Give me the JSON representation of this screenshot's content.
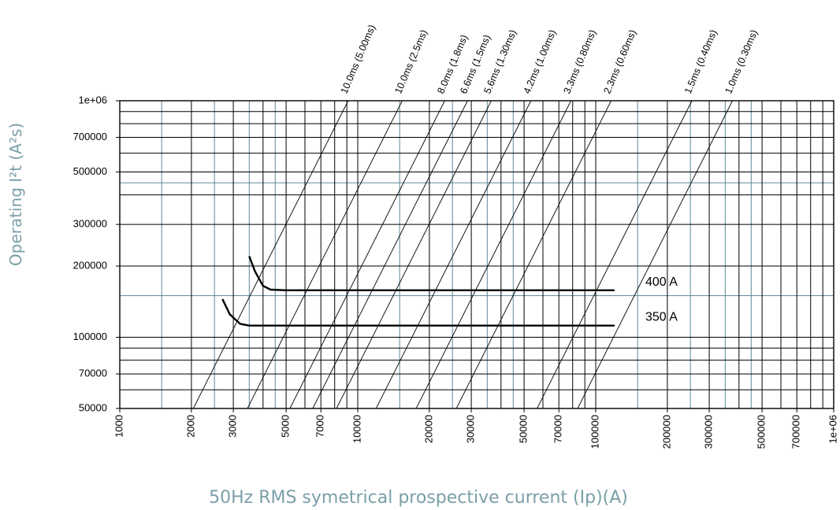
{
  "chart_data": {
    "type": "line",
    "title": "",
    "xlabel": "50Hz RMS symetrical prospective current (Ip)(A)",
    "ylabel": "Operating I²t (A²s)",
    "x_scale": "log",
    "y_scale": "log",
    "xlim": [
      1000,
      1000000
    ],
    "ylim": [
      50000,
      1000000
    ],
    "grid": true,
    "x_ticks": [
      {
        "value": 1000,
        "label": "1000"
      },
      {
        "value": 2000,
        "label": "2000"
      },
      {
        "value": 3000,
        "label": "3000"
      },
      {
        "value": 5000,
        "label": "5000"
      },
      {
        "value": 7000,
        "label": "7000"
      },
      {
        "value": 10000,
        "label": "10000"
      },
      {
        "value": 20000,
        "label": "20000"
      },
      {
        "value": 30000,
        "label": "30000"
      },
      {
        "value": 50000,
        "label": "50000"
      },
      {
        "value": 70000,
        "label": "70000"
      },
      {
        "value": 100000,
        "label": "100000"
      },
      {
        "value": 200000,
        "label": "200000"
      },
      {
        "value": 300000,
        "label": "300000"
      },
      {
        "value": 500000,
        "label": "500000"
      },
      {
        "value": 700000,
        "label": "700000"
      },
      {
        "value": 1000000,
        "label": "1e+06"
      }
    ],
    "y_ticks": [
      {
        "value": 1000000,
        "label": "1e+06"
      },
      {
        "value": 700000,
        "label": "700000"
      },
      {
        "value": 500000,
        "label": "500000"
      },
      {
        "value": 300000,
        "label": "300000"
      },
      {
        "value": 200000,
        "label": "200000"
      },
      {
        "value": 100000,
        "label": "100000"
      },
      {
        "value": 70000,
        "label": "70000"
      },
      {
        "value": 50000,
        "label": "50000"
      }
    ],
    "x_grid_black": [
      2000,
      3000,
      4000,
      5000,
      6000,
      7000,
      8000,
      9000,
      10000,
      20000,
      30000,
      40000,
      50000,
      60000,
      70000,
      80000,
      90000,
      100000,
      200000,
      300000,
      400000,
      500000,
      600000,
      700000,
      800000,
      900000
    ],
    "x_grid_teal": [
      1500,
      2500,
      3500,
      4500,
      15000,
      25000,
      35000,
      45000,
      150000,
      250000,
      350000,
      450000
    ],
    "y_grid_black": [
      60000,
      70000,
      80000,
      90000,
      100000,
      200000,
      300000,
      400000,
      500000,
      600000,
      700000,
      800000,
      900000
    ],
    "y_grid_teal": [
      150000,
      450000
    ],
    "time_lines": [
      {
        "label": "10.0ms (5.00ms)",
        "top_x": 9110
      },
      {
        "label": "10.0ms (2.5ms)",
        "top_x": 15380
      },
      {
        "label": "8.0ms (1.8ms)",
        "top_x": 23200
      },
      {
        "label": "6.6ms (1.5ms)",
        "top_x": 28930
      },
      {
        "label": "5.6ms (1.30ms)",
        "top_x": 36410
      },
      {
        "label": "4.2ms (1.00ms)",
        "top_x": 53400
      },
      {
        "label": "3.3ms (0.80ms)",
        "top_x": 78700
      },
      {
        "label": "2.3ms (0.60ms)",
        "top_x": 116100
      },
      {
        "label": "1.5ms (0.40ms)",
        "top_x": 253600
      },
      {
        "label": "1.0ms (0.30ms)",
        "top_x": 375400
      }
    ],
    "series": [
      {
        "name": "400 A",
        "x": [
          3500,
          3700,
          4000,
          4300,
          5000,
          10000,
          50000,
          100000,
          120000
        ],
        "y": [
          220000,
          190000,
          165000,
          159000,
          158000,
          158000,
          158000,
          158000,
          158000
        ]
      },
      {
        "name": "350 A",
        "x": [
          2700,
          2900,
          3200,
          3500,
          4000,
          10000,
          50000,
          100000,
          120000
        ],
        "y": [
          145000,
          125000,
          114000,
          112000,
          112000,
          112000,
          112000,
          112000,
          112000
        ]
      }
    ],
    "colors": {
      "grid_black": "#000000",
      "grid_teal": "#5a8a96",
      "axis_title": "#7a9fa8"
    }
  }
}
